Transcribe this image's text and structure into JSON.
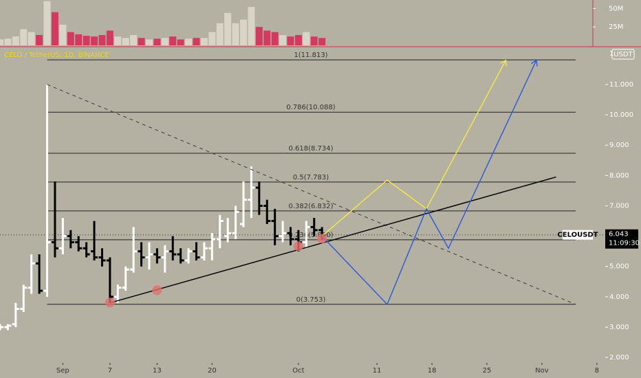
{
  "chart_data": {
    "type": "ohlc",
    "title": "CELO / TetherUS, 1D, BINANCE",
    "x": [
      236,
      237,
      238,
      239,
      240,
      241,
      242,
      243,
      244,
      245,
      246,
      247,
      248,
      249,
      250,
      251,
      252,
      253,
      254,
      255,
      256,
      257,
      258,
      259,
      260,
      261,
      262,
      263,
      264,
      265,
      266,
      267,
      268,
      269,
      270,
      271,
      272,
      273,
      274,
      275,
      276,
      277
    ],
    "open": [
      3.0,
      3.0,
      3.1,
      3.6,
      4.3,
      5.1,
      4.2,
      5.8,
      5.6,
      6.0,
      5.8,
      5.6,
      5.5,
      5.3,
      5.2,
      4.0,
      4.3,
      4.9,
      5.5,
      5.3,
      5.4,
      5.3,
      5.5,
      5.4,
      5.2,
      5.5,
      5.3,
      5.6,
      5.9,
      6.0,
      6.1,
      6.4,
      7.2,
      7.6,
      7.0,
      6.5,
      6.0,
      6.1,
      5.9,
      5.8,
      6.3,
      6.2
    ],
    "high": [
      3.1,
      3.1,
      3.8,
      4.4,
      5.4,
      5.4,
      11.0,
      7.8,
      6.6,
      6.2,
      6.0,
      5.8,
      6.5,
      5.6,
      5.3,
      4.4,
      5.0,
      6.3,
      5.8,
      5.8,
      5.6,
      5.7,
      6.0,
      5.6,
      5.6,
      5.8,
      5.8,
      6.1,
      6.7,
      6.6,
      7.0,
      7.8,
      8.3,
      7.8,
      7.2,
      6.9,
      6.5,
      6.3,
      6.2,
      6.5,
      6.6,
      6.3
    ],
    "low": [
      2.9,
      2.9,
      3.0,
      3.5,
      4.1,
      4.1,
      4.0,
      5.3,
      5.4,
      5.6,
      5.5,
      5.3,
      5.2,
      5.0,
      3.8,
      3.8,
      4.2,
      4.8,
      5.0,
      4.9,
      5.1,
      4.8,
      5.2,
      5.1,
      5.1,
      5.2,
      5.2,
      5.2,
      5.6,
      5.8,
      5.9,
      6.3,
      6.6,
      6.7,
      6.4,
      5.7,
      5.8,
      5.7,
      5.5,
      5.6,
      6.0,
      5.9
    ],
    "close": [
      3.0,
      3.05,
      3.6,
      4.3,
      5.1,
      4.2,
      5.8,
      5.6,
      6.0,
      5.8,
      5.6,
      5.4,
      5.3,
      5.2,
      4.0,
      4.3,
      4.9,
      5.5,
      5.3,
      5.4,
      5.3,
      5.5,
      5.4,
      5.2,
      5.5,
      5.3,
      5.6,
      5.9,
      6.5,
      6.1,
      6.8,
      7.2,
      7.6,
      7.0,
      6.5,
      6.0,
      6.1,
      5.9,
      5.8,
      6.3,
      6.2,
      6.043
    ],
    "volume": [
      8,
      9,
      12,
      22,
      18,
      14,
      60,
      45,
      28,
      18,
      15,
      13,
      12,
      14,
      20,
      12,
      10,
      14,
      10,
      8,
      9,
      10,
      12,
      8,
      9,
      10,
      10,
      18,
      30,
      44,
      30,
      35,
      52,
      25,
      20,
      18,
      14,
      12,
      14,
      18,
      12,
      10
    ],
    "up_color": "#ffffff",
    "down_color": "#000000",
    "volume_up_color": "#d9d4c6",
    "volume_down_color": "#d33a60",
    "xlim": [
      236,
      313.5
    ],
    "xticks": [
      {
        "value": 244,
        "label": "Sep"
      },
      {
        "value": 250,
        "label": "7"
      },
      {
        "value": 256,
        "label": "13"
      },
      {
        "value": 263,
        "label": "20"
      },
      {
        "value": 274,
        "label": "Oct"
      },
      {
        "value": 284,
        "label": "11"
      },
      {
        "value": 291,
        "label": "18"
      },
      {
        "value": 298,
        "label": "25"
      },
      {
        "value": 305,
        "label": "Nov"
      },
      {
        "value": 312,
        "label": "8"
      }
    ],
    "ylim": [
      1.55,
      12.2
    ],
    "yticks": [
      {
        "value": 11,
        "label": "11.000"
      },
      {
        "value": 10,
        "label": "10.000"
      },
      {
        "value": 9,
        "label": "9.000"
      },
      {
        "value": 8,
        "label": "8.000"
      },
      {
        "value": 7,
        "label": "7.000"
      },
      {
        "value": 5,
        "label": "5.000"
      },
      {
        "value": 4,
        "label": "4.000"
      },
      {
        "value": 3,
        "label": "3.000"
      },
      {
        "value": 2,
        "label": "2.000"
      }
    ],
    "volume_ylim": [
      0,
      61.5
    ],
    "volume_ticks": [
      {
        "value": 50,
        "label": "50M"
      },
      {
        "value": 25,
        "label": "25M"
      }
    ],
    "price_axis_fragment": "1",
    "currency_tag": "USDT",
    "last_price": 6.043,
    "countdown": "11:09:30",
    "symbol_tag": "CELOUSDT",
    "fib_x": [
      242,
      309.3
    ],
    "fib_levels": [
      {
        "value": 11.813,
        "label": "1(11.813)"
      },
      {
        "value": 10.088,
        "label": "0.786(10.088)"
      },
      {
        "value": 8.734,
        "label": "0.618(8.734)"
      },
      {
        "value": 7.783,
        "label": "0.5(7.783)"
      },
      {
        "value": 6.832,
        "label": "0.382(6.832)"
      },
      {
        "value": 5.88,
        "label": "0.236(5.880)"
      },
      {
        "value": 3.753,
        "label": "0(3.753)"
      }
    ],
    "trendlines": [
      {
        "style": "dashed",
        "color": "#3a3a3a",
        "x": [
          242,
          309.3
        ],
        "y": [
          11.0,
          3.75
        ]
      },
      {
        "style": "solid",
        "color": "#000000",
        "x": [
          250,
          306.8
        ],
        "y": [
          3.8,
          7.95
        ]
      }
    ],
    "projections": [
      {
        "color": "#f2e64a",
        "x": [
          277,
          285.3,
          290.3,
          300.4
        ],
        "y": [
          6.0,
          7.85,
          6.9,
          11.8
        ]
      },
      {
        "color": "#2f5fd6",
        "x": [
          277,
          285.3,
          290.3,
          293.1,
          304.3
        ],
        "y": [
          6.0,
          3.75,
          6.9,
          5.6,
          11.8
        ]
      }
    ],
    "markers": {
      "color": "#e07070",
      "x": [
        250,
        256,
        274,
        277
      ],
      "y": [
        3.81,
        4.22,
        5.67,
        5.92
      ]
    }
  }
}
